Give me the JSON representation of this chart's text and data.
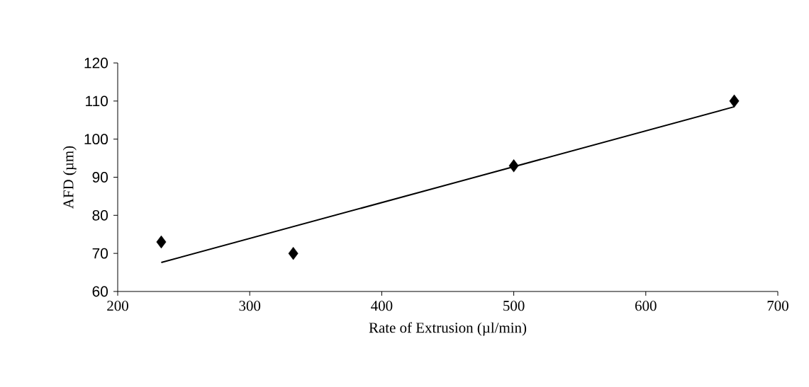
{
  "chart_data": {
    "type": "scatter",
    "xlabel": "Rate of Extrusion (µl/min)",
    "ylabel": "AFD (µm)",
    "xlim": [
      200,
      700
    ],
    "xticks": [
      200,
      300,
      400,
      500,
      600,
      700
    ],
    "ylim": [
      60,
      120
    ],
    "yticks": [
      60,
      70,
      80,
      90,
      100,
      110,
      120
    ],
    "series": [
      {
        "x": [
          233,
          333,
          500,
          667
        ],
        "values": [
          73,
          70,
          93,
          110
        ],
        "color": "#000000",
        "marker": "diamond"
      },
      {
        "type": "line",
        "x": [
          233,
          667
        ],
        "values": [
          67.6,
          108.5
        ],
        "color": "#000000",
        "marker": "none",
        "line_style": "solid"
      }
    ]
  }
}
